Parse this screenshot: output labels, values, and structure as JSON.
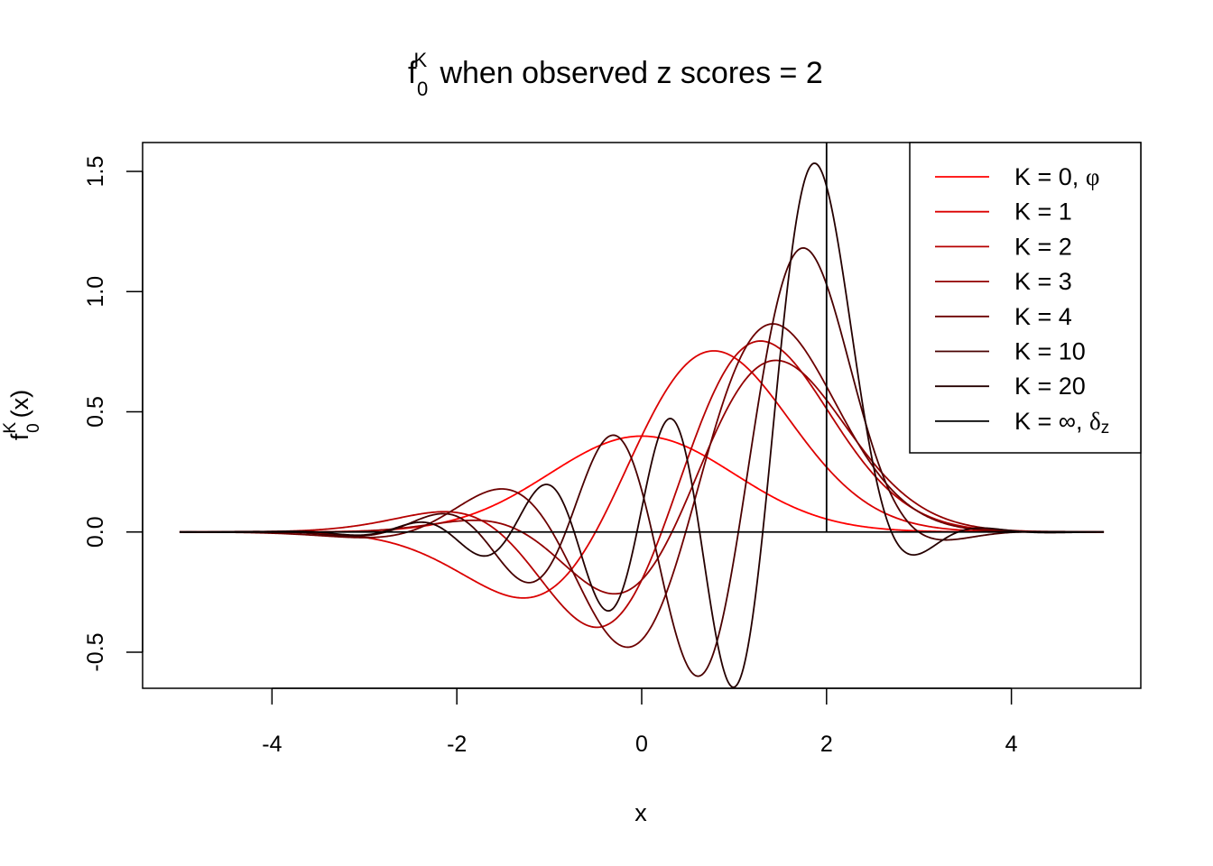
{
  "chart_data": {
    "type": "line",
    "title": {
      "base": "f",
      "superscript": "K",
      "subscript": "0",
      "text": " when observed z scores = 2"
    },
    "xlabel": "x",
    "ylabel": {
      "base": "f",
      "superscript": "K",
      "subscript": "0",
      "text": "(x)"
    },
    "xlim": [
      -5.4,
      5.4
    ],
    "ylim": [
      -0.65,
      1.62
    ],
    "x_range": [
      -5,
      5
    ],
    "xticks": [
      -4,
      -2,
      0,
      2,
      4
    ],
    "xtick_labels": [
      "-4",
      "-2",
      "0",
      "2",
      "4"
    ],
    "yticks": [
      -0.5,
      0,
      0.5,
      1,
      1.5
    ],
    "ytick_labels": [
      "-0.5",
      "0.0",
      "0.5",
      "1.0",
      "1.5"
    ],
    "z": 2,
    "series": [
      {
        "name": "K = 0, φ",
        "K": 0,
        "color": "#FF0000"
      },
      {
        "name": "K = 1",
        "K": 1,
        "color": "#DB0000"
      },
      {
        "name": "K = 2",
        "K": 2,
        "color": "#B60000"
      },
      {
        "name": "K = 3",
        "K": 3,
        "color": "#920000"
      },
      {
        "name": "K = 4",
        "K": 4,
        "color": "#6D0000"
      },
      {
        "name": "K = 10",
        "K": 10,
        "color": "#490000"
      },
      {
        "name": "K = 20",
        "K": 20,
        "color": "#240000"
      },
      {
        "name": "K = ∞, δz",
        "K": null,
        "color": "#000000"
      }
    ],
    "legend": {
      "position": "top-right",
      "entries": [
        {
          "label": "K = 0, ",
          "symbol": "φ",
          "sub": ""
        },
        {
          "label": "K = 1",
          "symbol": "",
          "sub": ""
        },
        {
          "label": "K = 2",
          "symbol": "",
          "sub": ""
        },
        {
          "label": "K = 3",
          "symbol": "",
          "sub": ""
        },
        {
          "label": "K = 4",
          "symbol": "",
          "sub": ""
        },
        {
          "label": "K = 10",
          "symbol": "",
          "sub": ""
        },
        {
          "label": "K = 20",
          "symbol": "",
          "sub": ""
        },
        {
          "label": "K = ∞, ",
          "symbol": "δ",
          "sub": "z"
        }
      ]
    }
  }
}
